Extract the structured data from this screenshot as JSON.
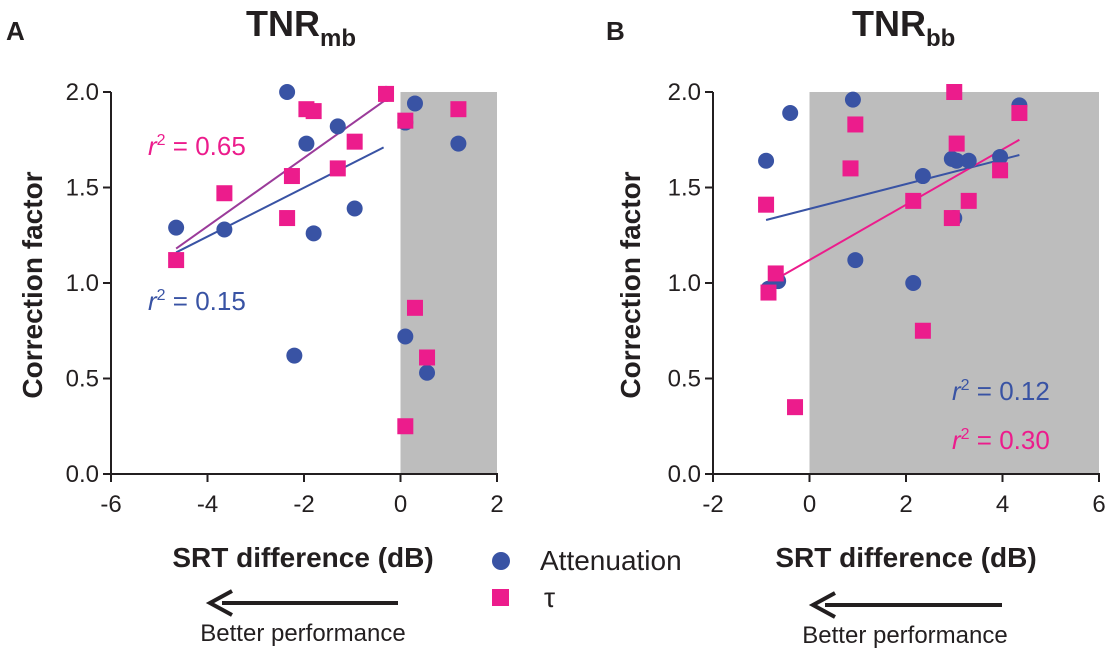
{
  "colors": {
    "attenuation": "#3953a4",
    "tau": "#ec1c8c",
    "shade": "#bdbdbd",
    "axis": "#231f20"
  },
  "legend": {
    "attenuation": {
      "label": "Attenuation",
      "marker": "circle"
    },
    "tau": {
      "label": "τ",
      "marker": "square"
    }
  },
  "arrow": {
    "label": "Better performance"
  },
  "chart_data": [
    {
      "panel": "A",
      "type": "scatter",
      "title": {
        "main": "TNR",
        "sub": "mb"
      },
      "xlabel": "SRT difference (dB)",
      "ylabel": "Correction factor",
      "xlim": [
        -6,
        2
      ],
      "ylim": [
        0,
        2
      ],
      "xticks": [
        -6,
        -4,
        -2,
        0,
        2
      ],
      "xtick_labels": [
        "-6",
        "-4",
        "-2",
        "0",
        "2"
      ],
      "yticks": [
        0,
        0.5,
        1,
        1.5,
        2
      ],
      "ytick_labels": [
        "0.0",
        "0.5",
        "1.0",
        "1.5",
        "2.0"
      ],
      "shaded_region": {
        "x_from": 0,
        "x_to": 2
      },
      "series": [
        {
          "name": "Attenuation",
          "marker": "circle",
          "points": [
            [
              -4.65,
              1.29
            ],
            [
              -3.65,
              1.28
            ],
            [
              -2.35,
              2.0
            ],
            [
              -2.2,
              0.62
            ],
            [
              -1.95,
              1.73
            ],
            [
              -1.8,
              1.26
            ],
            [
              -1.3,
              1.82
            ],
            [
              -0.95,
              1.39
            ],
            [
              -0.3,
              1.99
            ],
            [
              0.1,
              1.84
            ],
            [
              0.3,
              1.94
            ],
            [
              0.1,
              0.72
            ],
            [
              0.55,
              0.53
            ],
            [
              1.2,
              1.73
            ]
          ],
          "fit": {
            "x": [
              -4.65,
              -0.35
            ],
            "y": [
              1.16,
              1.71
            ],
            "r2_label": "r² = 0.15",
            "r2_prefix": "r",
            "r2_sup": "2",
            "r2_rest": " = 0.15"
          }
        },
        {
          "name": "τ",
          "marker": "square",
          "points": [
            [
              -4.65,
              1.12
            ],
            [
              -3.65,
              1.47
            ],
            [
              -2.35,
              1.34
            ],
            [
              -2.25,
              1.56
            ],
            [
              -1.95,
              1.91
            ],
            [
              -1.8,
              1.9
            ],
            [
              -1.3,
              1.6
            ],
            [
              -0.95,
              1.74
            ],
            [
              -0.3,
              1.99
            ],
            [
              0.1,
              1.85
            ],
            [
              1.2,
              1.91
            ],
            [
              0.3,
              0.87
            ],
            [
              0.55,
              0.61
            ],
            [
              0.1,
              0.25
            ]
          ],
          "fit": {
            "x": [
              -4.65,
              -0.3
            ],
            "y": [
              1.18,
              1.96
            ],
            "r2_label": "r² = 0.65",
            "r2_prefix": "r",
            "r2_sup": "2",
            "r2_rest": " = 0.65"
          }
        }
      ]
    },
    {
      "panel": "B",
      "type": "scatter",
      "title": {
        "main": "TNR",
        "sub": "bb"
      },
      "xlabel": "SRT difference (dB)",
      "ylabel": "Correction factor",
      "xlim": [
        -2,
        6
      ],
      "ylim": [
        0,
        2
      ],
      "xticks": [
        -2,
        0,
        2,
        4,
        6
      ],
      "xtick_labels": [
        "-2",
        "0",
        "2",
        "4",
        "6"
      ],
      "yticks": [
        0,
        0.5,
        1,
        1.5,
        2
      ],
      "ytick_labels": [
        "0.0",
        "0.5",
        "1.0",
        "1.5",
        "2.0"
      ],
      "shaded_region": {
        "x_from": 0,
        "x_to": 6
      },
      "series": [
        {
          "name": "Attenuation",
          "marker": "circle",
          "points": [
            [
              -0.9,
              1.64
            ],
            [
              -0.4,
              1.89
            ],
            [
              -0.85,
              0.97
            ],
            [
              -0.65,
              1.01
            ],
            [
              0.9,
              1.96
            ],
            [
              0.95,
              1.12
            ],
            [
              2.15,
              1.0
            ],
            [
              2.35,
              1.56
            ],
            [
              2.95,
              1.65
            ],
            [
              3.0,
              1.34
            ],
            [
              3.05,
              1.64
            ],
            [
              3.3,
              1.64
            ],
            [
              3.95,
              1.66
            ],
            [
              4.35,
              1.93
            ]
          ],
          "fit": {
            "x": [
              -0.9,
              4.35
            ],
            "y": [
              1.33,
              1.67
            ],
            "r2_label": "r² = 0.12",
            "r2_prefix": "r",
            "r2_sup": "2",
            "r2_rest": " = 0.12"
          }
        },
        {
          "name": "τ",
          "marker": "square",
          "points": [
            [
              -0.9,
              1.41
            ],
            [
              -0.85,
              0.95
            ],
            [
              -0.7,
              1.05
            ],
            [
              -0.3,
              0.35
            ],
            [
              0.85,
              1.6
            ],
            [
              0.95,
              1.83
            ],
            [
              2.15,
              1.43
            ],
            [
              2.35,
              0.75
            ],
            [
              2.95,
              1.34
            ],
            [
              3.0,
              2.0
            ],
            [
              3.05,
              1.73
            ],
            [
              3.3,
              1.43
            ],
            [
              3.95,
              1.59
            ],
            [
              4.35,
              1.89
            ]
          ],
          "fit": {
            "x": [
              -0.9,
              4.35
            ],
            "y": [
              0.99,
              1.75
            ],
            "r2_label": "r² = 0.30",
            "r2_prefix": "r",
            "r2_sup": "2",
            "r2_rest": " = 0.30"
          }
        }
      ]
    }
  ]
}
